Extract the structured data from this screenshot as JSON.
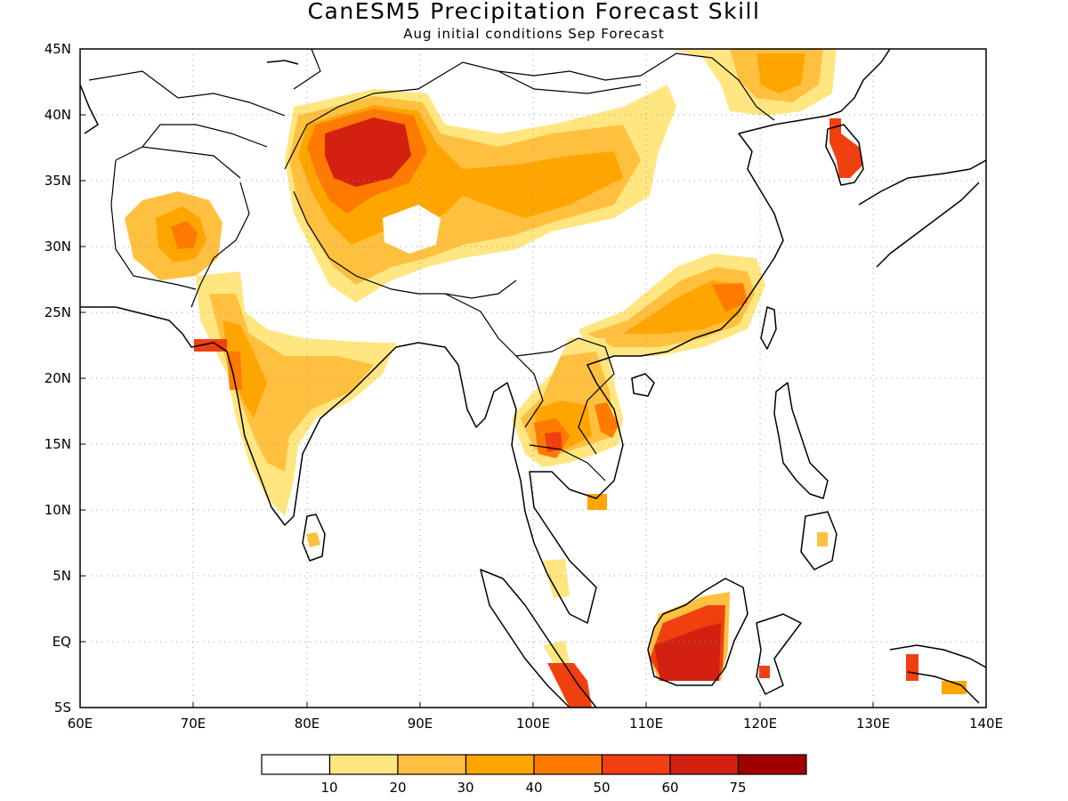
{
  "header": {
    "title": "CanESM5 Precipitation Forecast Skill",
    "subtitle": "Aug initial conditions  Sep Forecast"
  },
  "map": {
    "projection": "lat-lon",
    "lon_range": [
      60,
      140
    ],
    "lat_range": [
      -5,
      45
    ],
    "lon_ticks": [
      "60E",
      "70E",
      "80E",
      "90E",
      "100E",
      "110E",
      "120E",
      "130E",
      "140E"
    ],
    "lat_ticks": [
      "45N",
      "40N",
      "35N",
      "30N",
      "25N",
      "20N",
      "15N",
      "10N",
      "5N",
      "EQ",
      "5S"
    ],
    "grid": "dotted"
  },
  "colorbar": {
    "labels": [
      "10",
      "20",
      "30",
      "40",
      "50",
      "60",
      "75"
    ],
    "colors": [
      "#ffffff",
      "#ffe680",
      "#ffc040",
      "#ffa500",
      "#ff7a00",
      "#f04010",
      "#d42010",
      "#a00000"
    ]
  }
}
